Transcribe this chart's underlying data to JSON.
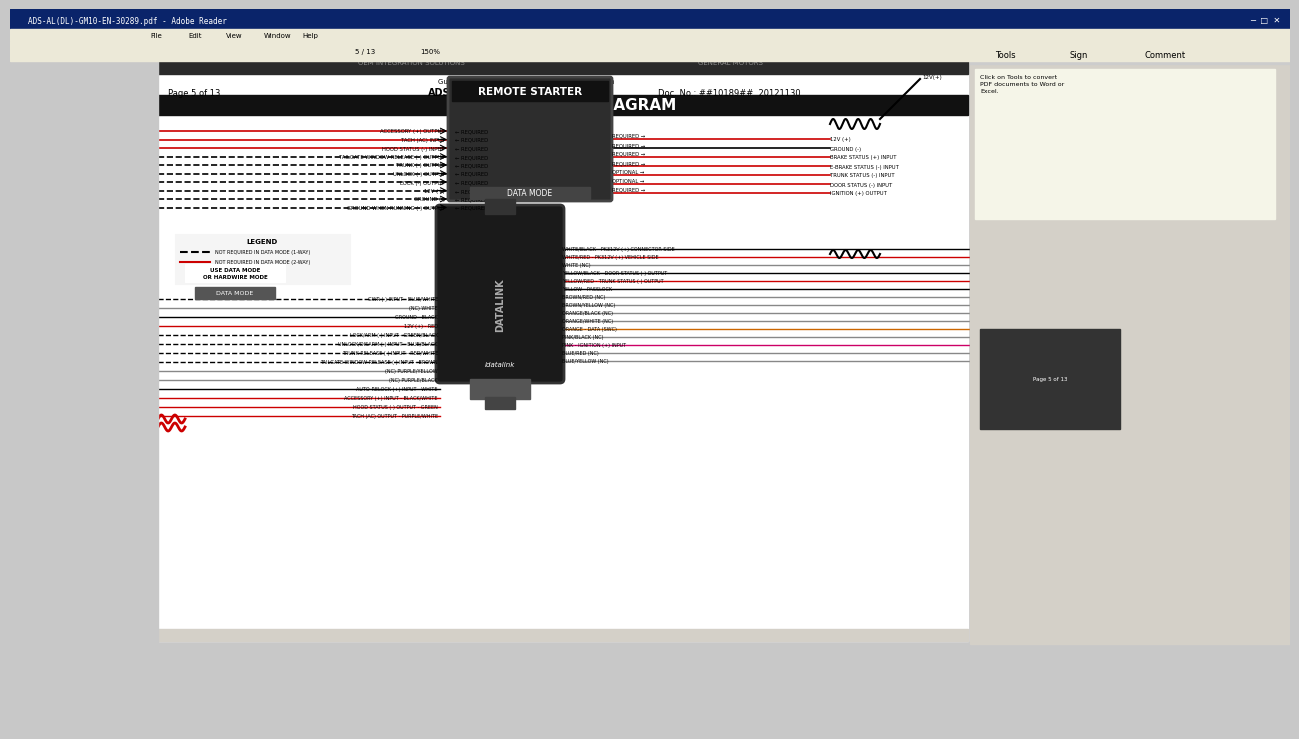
{
  "title": "TYPE 1 - WIRING DIAGRAM",
  "page_info": "Page 5 of 13",
  "doc_center": "ADS-AL(DL)-GM10-EN",
  "doc_no": "Doc. No.: ##10189##  20121130",
  "remote_starter_label": "REMOTE STARTER",
  "datalink_label": "DATALINK",
  "bg_color": "#c8c8c8",
  "window_bg": "#d4d0c8",
  "titlebar_color": "#0a246a",
  "page_bg": "#ffffff",
  "diagram_bg": "#e8e8e8",
  "black_header_bg": "#1a1a1a",
  "header_text_color": "#ffffff",
  "remote_starter_bg": "#333333",
  "left_wires": [
    {
      "label": "ACCESSORY (+) OUTPUT",
      "color": "#cc0000",
      "style": "solid",
      "req": "REQUIRED"
    },
    {
      "label": "TACH (AC) INPUT",
      "color": "#cc0000",
      "style": "solid",
      "req": "REQUIRED"
    },
    {
      "label": "HOOD STATUS (-) INPUT",
      "color": "#cc0000",
      "style": "solid",
      "req": "REQUIRED"
    },
    {
      "label": "TAILGATE WINDOW RELEASE (-) OUTPUT",
      "color": "#000000",
      "style": "dashed",
      "req": "REQUIRED"
    },
    {
      "label": "TRUNK (-) OUTPUT",
      "color": "#000000",
      "style": "dashed",
      "req": "REQUIRED"
    },
    {
      "label": "UNLOCK (-) OUTPUT",
      "color": "#000000",
      "style": "dashed",
      "req": "REQUIRED"
    },
    {
      "label": "LOCK (-) OUTPUT",
      "color": "#000000",
      "style": "dashed",
      "req": "REQUIRED"
    },
    {
      "label": "12V (+)",
      "color": "#000000",
      "style": "dashed",
      "req": "REQUIRED"
    },
    {
      "label": "GROUND (-)",
      "color": "#000000",
      "style": "dashed",
      "req": "REQUIRED"
    },
    {
      "label": "GROUND WHEN RUNNING (-) OUTPUT",
      "color": "#000000",
      "style": "dashed",
      "req": "REQUIRED"
    }
  ],
  "right_wires": [
    {
      "label": "12V (+)",
      "color": "#cc0000",
      "style": "solid",
      "req": "REQUIRED"
    },
    {
      "label": "GROUND (-)",
      "color": "#000000",
      "style": "solid",
      "req": "REQUIRED"
    },
    {
      "label": "BRAKE STATUS (+) INPUT",
      "color": "#cc0000",
      "style": "solid",
      "req": "REQUIRED"
    },
    {
      "label": "E-BRAKE STATUS (-) INPUT",
      "color": "#cc0000",
      "style": "solid",
      "req": "REQUIRED"
    },
    {
      "label": "TRUNK STATUS (-) INPUT",
      "color": "#cc0000",
      "style": "solid",
      "req": "OPTIONAL"
    },
    {
      "label": "DOOR STATUS (-) INPUT",
      "color": "#cc0000",
      "style": "solid",
      "req": "OPTIONAL"
    },
    {
      "label": "IGNITION (+) OUTPUT",
      "color": "#cc0000",
      "style": "solid",
      "req": "REQUIRED"
    }
  ],
  "bottom_left_wires": [
    {
      "label": "GWR (-) INPUT - BLUE/WHITE",
      "color": "#000000",
      "style": "dashed"
    },
    {
      "label": "(NC) WHITE",
      "color": "#888888",
      "style": "solid",
      "nc": true
    },
    {
      "label": "GROUND - BLACK",
      "color": "#000000",
      "style": "solid"
    },
    {
      "label": "12V (+) - RED",
      "color": "#cc0000",
      "style": "solid"
    },
    {
      "label": "LOCK/ARM (-) INPUT - GREEN/BLACK",
      "color": "#000000",
      "style": "dashed"
    },
    {
      "label": "UNLOCK/DISARM (-) INPUT - BLUE/BLACK",
      "color": "#000000",
      "style": "dashed"
    },
    {
      "label": "TRUNK RELEASE (-) INPUT - RED/WHITE",
      "color": "#000000",
      "style": "dashed"
    },
    {
      "label": "TAILGATE WINDOW RELEASE (-) INPUT - BROWN",
      "color": "#000000",
      "style": "dashed"
    },
    {
      "label": "(NC) PURPLE/YELLOW",
      "color": "#888888",
      "style": "solid",
      "nc": true
    },
    {
      "label": "(NC) PURPLE/BLACK",
      "color": "#888888",
      "style": "solid",
      "nc": true
    },
    {
      "label": "AUTO-RELOCK (+) INPUT - WHITE",
      "color": "#000000",
      "style": "solid"
    },
    {
      "label": "ACCESSORY (+) INPUT - BLACK/WHITE",
      "color": "#cc0000",
      "style": "solid"
    },
    {
      "label": "HOOD STATUS (-) OUTPUT - GREEN",
      "color": "#cc0000",
      "style": "solid"
    },
    {
      "label": "TACH (AC) OUTPUT - PURPLE/WHITE",
      "color": "#cc0000",
      "style": "solid"
    }
  ],
  "bottom_right_wires": [
    {
      "label": "WHITE/BLACK - PK312V (+) CONNECTOR SIDE",
      "color": "#000000",
      "style": "solid"
    },
    {
      "label": "WHITE/RED - PK312V (+) VEHICLE SIDE",
      "color": "#cc0000",
      "style": "solid"
    },
    {
      "label": "WHITE (NC)",
      "color": "#888888",
      "style": "solid",
      "nc": true
    },
    {
      "label": "YELLOW/BLACK - DOOR STATUS (-) OUTPUT",
      "color": "#000000",
      "style": "solid"
    },
    {
      "label": "YELLOW/RED - TRUNK STATUS (-) OUTPUT",
      "color": "#cc0000",
      "style": "solid"
    },
    {
      "label": "YELLOW - PASSLOCK",
      "color": "#000000",
      "style": "solid"
    },
    {
      "label": "BROWN/RED (NC)",
      "color": "#888888",
      "style": "solid",
      "nc": true
    },
    {
      "label": "BROWN/YELLOW (NC)",
      "color": "#888888",
      "style": "solid",
      "nc": true
    },
    {
      "label": "ORANGE/BLACK (NC)",
      "color": "#888888",
      "style": "solid",
      "nc": true
    },
    {
      "label": "ORANGE/WHITE (NC)",
      "color": "#888888",
      "style": "solid",
      "nc": true
    },
    {
      "label": "ORANGE - DATA (SWC)",
      "color": "#cc6600",
      "style": "solid"
    },
    {
      "label": "PINK/BLACK (NC)",
      "color": "#888888",
      "style": "solid",
      "nc": true
    },
    {
      "label": "PINK - IGNITION (+) INPUT",
      "color": "#cc0066",
      "style": "solid"
    },
    {
      "label": "BLUE/RED (NC)",
      "color": "#888888",
      "style": "solid",
      "nc": true
    },
    {
      "label": "BLUE/YELLOW (NC)",
      "color": "#888888",
      "style": "solid",
      "nc": true
    }
  ],
  "legend_items": [
    {
      "label": "NOT REQUIRED IN DATA MODE (1-WAY)",
      "color": "#000000",
      "style": "dashed"
    },
    {
      "label": "NOT REQUIRED IN DATA MODE (2-WAY)",
      "color": "#cc0000",
      "style": "solid"
    }
  ]
}
